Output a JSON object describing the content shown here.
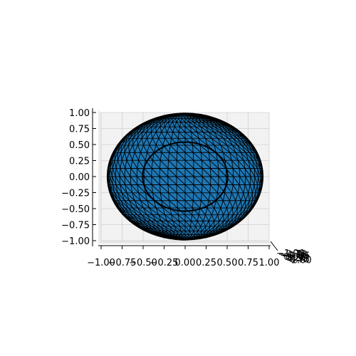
{
  "chart_data": {
    "type": "surface3d",
    "title": "",
    "xlabel": "",
    "ylabel": "",
    "zlabel": "",
    "xlim": [
      -1.0,
      1.0
    ],
    "ylim": [
      -1.0,
      1.0
    ],
    "zlim": [
      -1.0,
      1.0
    ],
    "x_ticks": [
      "−1.00",
      "−0.75",
      "−0.50",
      "−0.25",
      "0.00",
      "0.25",
      "0.50",
      "0.75",
      "1.00"
    ],
    "y_ticks": [
      "−1.00",
      "−0.75",
      "−0.50",
      "−0.25",
      "0.00",
      "0.25",
      "0.50",
      "0.75",
      "1.00"
    ],
    "z_ticks": [
      "−1.00",
      "−0.75",
      "−0.50",
      "−0.25",
      "0.00",
      "0.25",
      "0.50",
      "0.75",
      "1.00"
    ],
    "view": {
      "elevation_deg": 0,
      "azimuth_deg": -90
    },
    "surface": {
      "shape": "sphere",
      "center": [
        0,
        0,
        0
      ],
      "radius": 1.0,
      "mesh": "triangulated",
      "face_color": "#1f77b4",
      "edge_color": "#000000"
    },
    "pane_color": "#f2f2f2",
    "grid": true
  }
}
